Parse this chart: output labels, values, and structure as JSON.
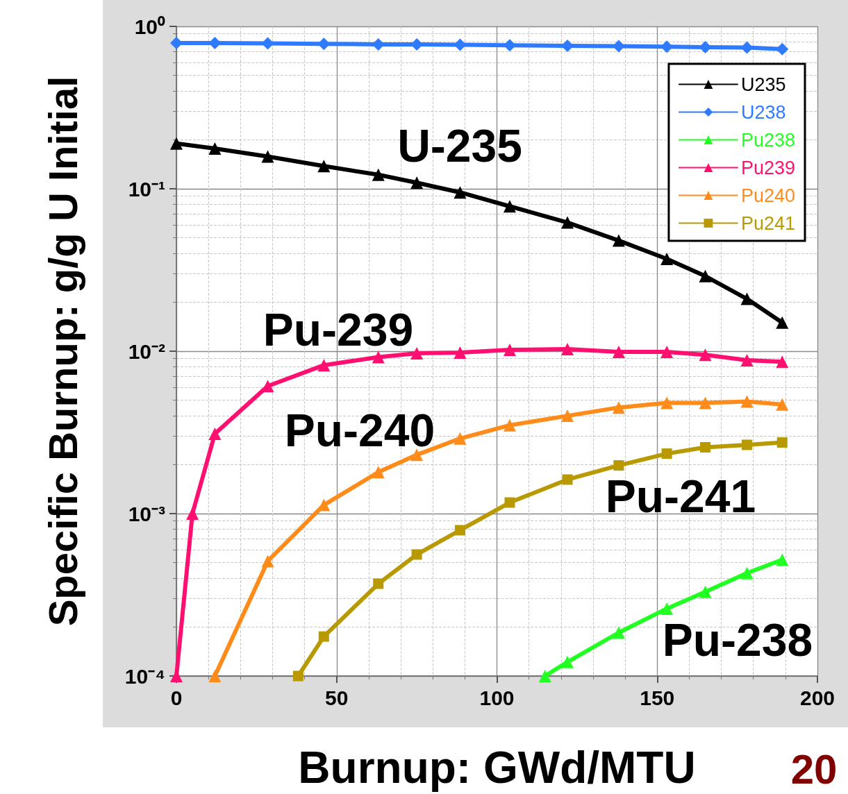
{
  "chart_data": {
    "type": "line",
    "xlabel": "Burnup: GWd/MTU",
    "ylabel": "Specific Burnup: g/g U Initial",
    "log": "y",
    "grid": true,
    "legend": "top right",
    "line_style": "solid",
    "xlim": [
      0,
      200
    ],
    "xticks": [
      0,
      50,
      100,
      150,
      200
    ],
    "ylim": [
      0.0001,
      1
    ],
    "yticks": [
      {
        "value": 0.0001,
        "label": "10⁻⁴"
      },
      {
        "value": 0.001,
        "label": "10⁻³"
      },
      {
        "value": 0.01,
        "label": "10⁻²"
      },
      {
        "value": 0.1,
        "label": "10⁻¹"
      },
      {
        "value": 1,
        "label": "10⁰"
      }
    ],
    "series": [
      {
        "name": "U235",
        "color": "#000000",
        "marker": "triangle",
        "x": [
          0,
          12,
          28.5,
          46,
          63,
          75,
          88.5,
          104,
          122,
          138,
          153,
          165,
          178,
          189
        ],
        "values": [
          0.19,
          0.177,
          0.158,
          0.138,
          0.122,
          0.109,
          0.095,
          0.078,
          0.062,
          0.048,
          0.037,
          0.029,
          0.021,
          0.015
        ]
      },
      {
        "name": "U238",
        "color": "#2f7bff",
        "marker": "diamond",
        "x": [
          0,
          12,
          28.5,
          46,
          63,
          75,
          88.5,
          104,
          122,
          138,
          153,
          165,
          178,
          189
        ],
        "values": [
          0.79,
          0.79,
          0.785,
          0.78,
          0.775,
          0.775,
          0.77,
          0.765,
          0.76,
          0.755,
          0.75,
          0.745,
          0.74,
          0.725
        ]
      },
      {
        "name": "Pu238",
        "color": "#22ff22",
        "marker": "triangle",
        "x": [
          115,
          122,
          138,
          153,
          165,
          178,
          189
        ],
        "values": [
          0.0001,
          0.000122,
          0.000185,
          0.00026,
          0.00033,
          0.00043,
          0.00052
        ]
      },
      {
        "name": "Pu239",
        "color": "#ff1070",
        "marker": "triangle",
        "x": [
          0,
          5,
          12,
          28.5,
          46,
          63,
          75,
          88.5,
          104,
          122,
          138,
          153,
          165,
          178,
          189
        ],
        "values": [
          0.0001,
          0.001,
          0.0031,
          0.0061,
          0.0082,
          0.0092,
          0.0097,
          0.0098,
          0.0102,
          0.0103,
          0.0099,
          0.0099,
          0.0095,
          0.0088,
          0.0086
        ]
      },
      {
        "name": "Pu240",
        "color": "#ff8c1a",
        "marker": "triangle",
        "x": [
          12,
          28.5,
          46,
          63,
          75,
          88.5,
          104,
          122,
          138,
          153,
          165,
          178,
          189
        ],
        "values": [
          0.0001,
          0.00051,
          0.00113,
          0.0018,
          0.0023,
          0.0029,
          0.0035,
          0.004,
          0.0045,
          0.0048,
          0.0048,
          0.0049,
          0.0047
        ]
      },
      {
        "name": "Pu241",
        "color": "#b89a00",
        "marker": "square",
        "x": [
          38,
          46,
          63,
          75,
          88.5,
          104,
          122,
          138,
          153,
          165,
          178,
          189
        ],
        "values": [
          0.0001,
          0.000175,
          0.00037,
          0.00056,
          0.00079,
          0.00117,
          0.00162,
          0.00198,
          0.00234,
          0.00256,
          0.00265,
          0.00274
        ]
      }
    ],
    "annotations": [
      "U-235",
      "Pu-239",
      "Pu-240",
      "Pu-241",
      "Pu-238",
      "20"
    ]
  }
}
